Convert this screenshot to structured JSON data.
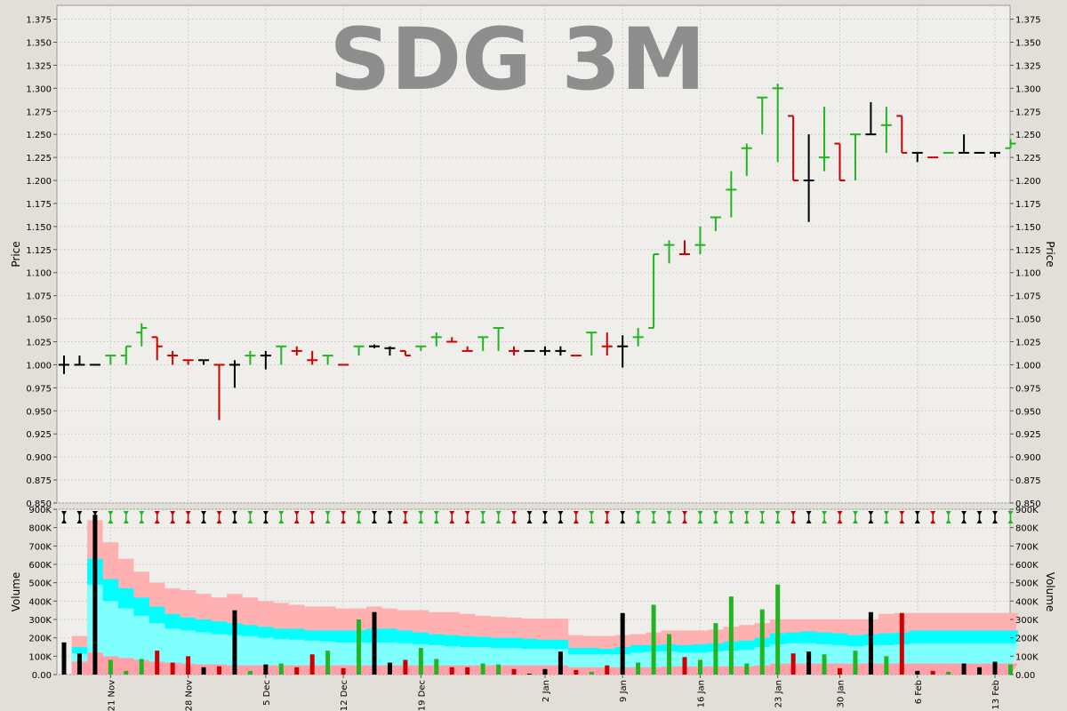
{
  "chart_data": [
    {
      "type": "ohlc",
      "title": "SDG 3M",
      "ylabel": "Price",
      "ylim": [
        0.85,
        1.39
      ],
      "y_ticks": [
        "0.850",
        "0.875",
        "0.900",
        "0.925",
        "0.950",
        "0.975",
        "1.000",
        "1.025",
        "1.050",
        "1.075",
        "1.100",
        "1.125",
        "1.150",
        "1.175",
        "1.200",
        "1.225",
        "1.250",
        "1.275",
        "1.300",
        "1.325",
        "1.350",
        "1.375"
      ],
      "grid": true,
      "colors": {
        "up": "#22b522",
        "down": "#cc0000",
        "flat": "#000000"
      },
      "bars": [
        {
          "o": 1.0,
          "h": 1.01,
          "l": 0.99,
          "c": 1.0,
          "d": "flat"
        },
        {
          "o": 1.0,
          "h": 1.01,
          "l": 1.0,
          "c": 1.0,
          "d": "flat"
        },
        {
          "o": 1.0,
          "h": 1.0,
          "l": 1.0,
          "c": 1.0,
          "d": "flat"
        },
        {
          "o": 1.01,
          "h": 1.01,
          "l": 1.0,
          "c": 1.01,
          "d": "up"
        },
        {
          "o": 1.01,
          "h": 1.02,
          "l": 1.0,
          "c": 1.02,
          "d": "up"
        },
        {
          "o": 1.035,
          "h": 1.045,
          "l": 1.02,
          "c": 1.04,
          "d": "up"
        },
        {
          "o": 1.03,
          "h": 1.03,
          "l": 1.005,
          "c": 1.02,
          "d": "down"
        },
        {
          "o": 1.01,
          "h": 1.015,
          "l": 1.0,
          "c": 1.01,
          "d": "down"
        },
        {
          "o": 1.005,
          "h": 1.005,
          "l": 1.0,
          "c": 1.005,
          "d": "down"
        },
        {
          "o": 1.005,
          "h": 1.005,
          "l": 1.0,
          "c": 1.005,
          "d": "flat"
        },
        {
          "o": 1.0,
          "h": 1.0,
          "l": 0.94,
          "c": 1.0,
          "d": "down"
        },
        {
          "o": 1.0,
          "h": 1.005,
          "l": 0.975,
          "c": 1.0,
          "d": "flat"
        },
        {
          "o": 1.01,
          "h": 1.015,
          "l": 1.0,
          "c": 1.01,
          "d": "up"
        },
        {
          "o": 1.01,
          "h": 1.015,
          "l": 0.995,
          "c": 1.01,
          "d": "flat"
        },
        {
          "o": 1.02,
          "h": 1.02,
          "l": 1.0,
          "c": 1.02,
          "d": "up"
        },
        {
          "o": 1.015,
          "h": 1.02,
          "l": 1.01,
          "c": 1.015,
          "d": "down"
        },
        {
          "o": 1.005,
          "h": 1.015,
          "l": 1.0,
          "c": 1.005,
          "d": "down"
        },
        {
          "o": 1.01,
          "h": 1.01,
          "l": 1.0,
          "c": 1.01,
          "d": "up"
        },
        {
          "o": 1.0,
          "h": 1.0,
          "l": 1.0,
          "c": 1.0,
          "d": "down"
        },
        {
          "o": 1.02,
          "h": 1.02,
          "l": 1.01,
          "c": 1.02,
          "d": "up"
        },
        {
          "o": 1.02,
          "h": 1.022,
          "l": 1.018,
          "c": 1.02,
          "d": "flat"
        },
        {
          "o": 1.018,
          "h": 1.02,
          "l": 1.01,
          "c": 1.018,
          "d": "flat"
        },
        {
          "o": 1.015,
          "h": 1.015,
          "l": 1.01,
          "c": 1.01,
          "d": "down"
        },
        {
          "o": 1.02,
          "h": 1.02,
          "l": 1.015,
          "c": 1.02,
          "d": "up"
        },
        {
          "o": 1.03,
          "h": 1.035,
          "l": 1.02,
          "c": 1.03,
          "d": "up"
        },
        {
          "o": 1.025,
          "h": 1.03,
          "l": 1.025,
          "c": 1.025,
          "d": "down"
        },
        {
          "o": 1.015,
          "h": 1.02,
          "l": 1.015,
          "c": 1.015,
          "d": "down"
        },
        {
          "o": 1.03,
          "h": 1.03,
          "l": 1.015,
          "c": 1.03,
          "d": "up"
        },
        {
          "o": 1.04,
          "h": 1.04,
          "l": 1.015,
          "c": 1.04,
          "d": "up"
        },
        {
          "o": 1.015,
          "h": 1.02,
          "l": 1.01,
          "c": 1.015,
          "d": "down"
        },
        {
          "o": 1.015,
          "h": 1.015,
          "l": 1.015,
          "c": 1.015,
          "d": "flat"
        },
        {
          "o": 1.015,
          "h": 1.02,
          "l": 1.01,
          "c": 1.015,
          "d": "flat"
        },
        {
          "o": 1.015,
          "h": 1.02,
          "l": 1.01,
          "c": 1.015,
          "d": "flat"
        },
        {
          "o": 1.01,
          "h": 1.01,
          "l": 1.01,
          "c": 1.01,
          "d": "down"
        },
        {
          "o": 1.035,
          "h": 1.035,
          "l": 1.01,
          "c": 1.035,
          "d": "up"
        },
        {
          "o": 1.02,
          "h": 1.035,
          "l": 1.01,
          "c": 1.02,
          "d": "down"
        },
        {
          "o": 1.02,
          "h": 1.032,
          "l": 0.997,
          "c": 1.02,
          "d": "flat"
        },
        {
          "o": 1.03,
          "h": 1.04,
          "l": 1.02,
          "c": 1.03,
          "d": "up"
        },
        {
          "o": 1.04,
          "h": 1.12,
          "l": 1.04,
          "c": 1.12,
          "d": "up"
        },
        {
          "o": 1.13,
          "h": 1.135,
          "l": 1.11,
          "c": 1.13,
          "d": "up"
        },
        {
          "o": 1.12,
          "h": 1.135,
          "l": 1.12,
          "c": 1.12,
          "d": "down"
        },
        {
          "o": 1.13,
          "h": 1.15,
          "l": 1.12,
          "c": 1.13,
          "d": "up"
        },
        {
          "o": 1.16,
          "h": 1.16,
          "l": 1.145,
          "c": 1.16,
          "d": "up"
        },
        {
          "o": 1.19,
          "h": 1.21,
          "l": 1.16,
          "c": 1.19,
          "d": "up"
        },
        {
          "o": 1.235,
          "h": 1.24,
          "l": 1.205,
          "c": 1.235,
          "d": "up"
        },
        {
          "o": 1.29,
          "h": 1.29,
          "l": 1.25,
          "c": 1.29,
          "d": "up"
        },
        {
          "o": 1.3,
          "h": 1.305,
          "l": 1.22,
          "c": 1.3,
          "d": "up"
        },
        {
          "o": 1.27,
          "h": 1.27,
          "l": 1.2,
          "c": 1.2,
          "d": "down"
        },
        {
          "o": 1.2,
          "h": 1.25,
          "l": 1.155,
          "c": 1.2,
          "d": "flat"
        },
        {
          "o": 1.225,
          "h": 1.28,
          "l": 1.21,
          "c": 1.225,
          "d": "up"
        },
        {
          "o": 1.24,
          "h": 1.24,
          "l": 1.2,
          "c": 1.2,
          "d": "down"
        },
        {
          "o": 1.25,
          "h": 1.25,
          "l": 1.2,
          "c": 1.25,
          "d": "up"
        },
        {
          "o": 1.25,
          "h": 1.285,
          "l": 1.25,
          "c": 1.25,
          "d": "flat"
        },
        {
          "o": 1.26,
          "h": 1.28,
          "l": 1.23,
          "c": 1.26,
          "d": "up"
        },
        {
          "o": 1.27,
          "h": 1.27,
          "l": 1.23,
          "c": 1.23,
          "d": "down"
        },
        {
          "o": 1.23,
          "h": 1.23,
          "l": 1.22,
          "c": 1.23,
          "d": "flat"
        },
        {
          "o": 1.225,
          "h": 1.225,
          "l": 1.225,
          "c": 1.225,
          "d": "down"
        },
        {
          "o": 1.23,
          "h": 1.23,
          "l": 1.23,
          "c": 1.23,
          "d": "up"
        },
        {
          "o": 1.23,
          "h": 1.25,
          "l": 1.23,
          "c": 1.23,
          "d": "flat"
        },
        {
          "o": 1.23,
          "h": 1.23,
          "l": 1.23,
          "c": 1.23,
          "d": "flat"
        },
        {
          "o": 1.23,
          "h": 1.23,
          "l": 1.225,
          "c": 1.23,
          "d": "flat"
        },
        {
          "o": 1.235,
          "h": 1.245,
          "l": 1.235,
          "c": 1.24,
          "d": "up"
        }
      ]
    },
    {
      "type": "bar",
      "ylabel": "Volume",
      "ylim": [
        0,
        900000
      ],
      "y_ticks": [
        "0.00",
        "100K",
        "200K",
        "300K",
        "400K",
        "500K",
        "600K",
        "700K",
        "800K",
        "900K"
      ],
      "x_ticks": [
        {
          "i": 3,
          "label": "21 Nov"
        },
        {
          "i": 8,
          "label": "28 Nov"
        },
        {
          "i": 13,
          "label": "5 Dec"
        },
        {
          "i": 18,
          "label": "12 Dec"
        },
        {
          "i": 23,
          "label": "19 Dec"
        },
        {
          "i": 31,
          "label": "2 Jan"
        },
        {
          "i": 36,
          "label": "9 Jan"
        },
        {
          "i": 41,
          "label": "16 Jan"
        },
        {
          "i": 46,
          "label": "23 Jan"
        },
        {
          "i": 50,
          "label": "30 Jan"
        },
        {
          "i": 55,
          "label": "6 Feb"
        },
        {
          "i": 60,
          "label": "13 Feb"
        }
      ],
      "values": [
        175000,
        115000,
        870000,
        80000,
        20000,
        85000,
        130000,
        65000,
        100000,
        40000,
        45000,
        350000,
        20000,
        55000,
        60000,
        40000,
        110000,
        130000,
        35000,
        300000,
        340000,
        65000,
        80000,
        145000,
        85000,
        40000,
        40000,
        60000,
        55000,
        30000,
        5000,
        30000,
        125000,
        25000,
        15000,
        50000,
        335000,
        65000,
        380000,
        220000,
        95000,
        80000,
        280000,
        425000,
        60000,
        355000,
        490000,
        115000,
        125000,
        110000,
        35000,
        130000,
        340000,
        100000,
        335000,
        20000,
        20000,
        15000,
        60000,
        40000,
        70000,
        55000
      ],
      "directions": [
        "flat",
        "flat",
        "flat",
        "up",
        "up",
        "up",
        "down",
        "down",
        "down",
        "flat",
        "down",
        "flat",
        "up",
        "flat",
        "up",
        "down",
        "down",
        "up",
        "down",
        "up",
        "flat",
        "flat",
        "down",
        "up",
        "up",
        "down",
        "down",
        "up",
        "up",
        "down",
        "flat",
        "flat",
        "flat",
        "down",
        "up",
        "down",
        "flat",
        "up",
        "up",
        "up",
        "down",
        "up",
        "up",
        "up",
        "up",
        "up",
        "up",
        "down",
        "flat",
        "up",
        "down",
        "up",
        "flat",
        "up",
        "down",
        "flat",
        "down",
        "up",
        "flat",
        "flat",
        "flat",
        "up"
      ],
      "avg_bands": {
        "pink": [
          null,
          210000,
          840000,
          720000,
          630000,
          560000,
          500000,
          470000,
          460000,
          440000,
          420000,
          440000,
          420000,
          400000,
          390000,
          380000,
          370000,
          370000,
          360000,
          360000,
          370000,
          360000,
          350000,
          350000,
          340000,
          340000,
          330000,
          320000,
          315000,
          310000,
          305000,
          305000,
          305000,
          215000,
          210000,
          210000,
          215000,
          220000,
          230000,
          240000,
          240000,
          240000,
          245000,
          260000,
          270000,
          280000,
          300000,
          300000,
          300000,
          300000,
          300000,
          300000,
          300000,
          330000,
          335000,
          335000,
          335000,
          335000,
          335000,
          335000,
          335000,
          335000
        ],
        "cyan": [
          null,
          150000,
          630000,
          520000,
          470000,
          420000,
          370000,
          330000,
          310000,
          300000,
          290000,
          280000,
          270000,
          260000,
          250000,
          250000,
          240000,
          240000,
          240000,
          240000,
          250000,
          250000,
          240000,
          230000,
          220000,
          215000,
          210000,
          205000,
          200000,
          200000,
          195000,
          190000,
          190000,
          145000,
          145000,
          140000,
          150000,
          160000,
          160000,
          165000,
          160000,
          165000,
          170000,
          180000,
          185000,
          200000,
          225000,
          230000,
          235000,
          230000,
          225000,
          215000,
          220000,
          225000,
          230000,
          240000,
          240000,
          240000,
          240000,
          240000,
          240000,
          240000
        ],
        "light": [
          null,
          115000,
          490000,
          400000,
          360000,
          320000,
          280000,
          250000,
          240000,
          230000,
          220000,
          215000,
          210000,
          200000,
          195000,
          190000,
          185000,
          180000,
          175000,
          175000,
          175000,
          175000,
          170000,
          165000,
          160000,
          155000,
          150000,
          150000,
          145000,
          145000,
          140000,
          140000,
          140000,
          110000,
          110000,
          110000,
          110000,
          120000,
          125000,
          125000,
          120000,
          120000,
          125000,
          130000,
          135000,
          150000,
          165000,
          170000,
          170000,
          165000,
          160000,
          155000,
          160000,
          160000,
          165000,
          170000,
          170000,
          170000,
          170000,
          170000,
          170000,
          170000
        ],
        "base": [
          null,
          70000,
          120000,
          100000,
          90000,
          80000,
          70000,
          65000,
          60000,
          55000,
          55000,
          50000,
          50000,
          50000,
          50000,
          50000,
          50000,
          50000,
          50000,
          50000,
          50000,
          50000,
          50000,
          50000,
          50000,
          50000,
          50000,
          50000,
          50000,
          50000,
          50000,
          50000,
          50000,
          40000,
          40000,
          40000,
          40000,
          40000,
          40000,
          45000,
          45000,
          45000,
          45000,
          45000,
          45000,
          50000,
          60000,
          60000,
          60000,
          60000,
          60000,
          60000,
          60000,
          60000,
          60000,
          60000,
          60000,
          60000,
          60000,
          60000,
          60000,
          60000
        ]
      },
      "colors": {
        "band_pink": "#ffb0b0",
        "band_cyan": "#00ffff",
        "band_light": "#80ffff",
        "band_base": "#ffa0a8"
      }
    }
  ]
}
